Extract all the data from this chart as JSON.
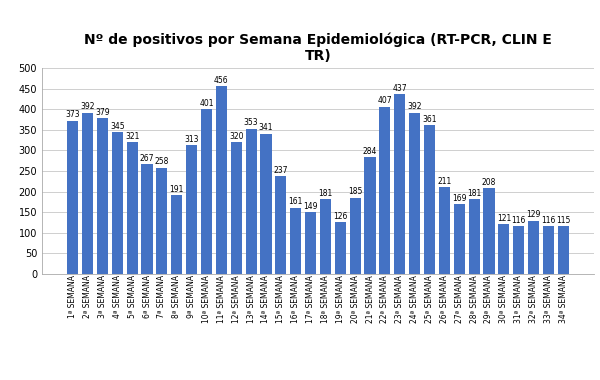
{
  "title": "Nº de positivos por Semana Epidemiológica (RT-PCR, CLIN E\nTR)",
  "categories": [
    "1ª SEMANA",
    "2ª SEMANA",
    "3ª SEMANA",
    "4ª SEMANA",
    "5ª SEMANA",
    "6ª SEMANA",
    "7ª SEMANA",
    "8ª SEMANA",
    "9ª SEMANA",
    "10ª SEMANA",
    "11ª SEMANA",
    "12ª SEMANA",
    "13ª SEMANA",
    "14ª SEMANA",
    "15ª SEMANA",
    "16ª SEMANA",
    "17ª SEMANA",
    "18ª SEMANA",
    "19ª SEMANA",
    "20ª SEMANA",
    "21ª SEMANA",
    "22ª SEMANA",
    "23ª SEMANA",
    "24ª SEMANA",
    "25ª SEMANA",
    "26ª SEMANA",
    "27ª SEMANA",
    "28ª SEMANA",
    "29ª SEMANA",
    "30ª SEMANA",
    "31ª SEMANA",
    "32ª SEMANA",
    "33ª SEMANA",
    "34ª SEMANA"
  ],
  "values": [
    373,
    392,
    379,
    345,
    321,
    267,
    258,
    191,
    313,
    401,
    456,
    320,
    353,
    341,
    237,
    161,
    149,
    181,
    126,
    185,
    284,
    407,
    437,
    392,
    361,
    211,
    169,
    181,
    208,
    121,
    116,
    129,
    116,
    115
  ],
  "bar_color": "#4472C4",
  "ylim": [
    0,
    500
  ],
  "yticks": [
    0,
    50,
    100,
    150,
    200,
    250,
    300,
    350,
    400,
    450,
    500
  ],
  "label_fontsize": 5.5,
  "title_fontsize": 10,
  "tick_fontsize": 5.5,
  "ytick_fontsize": 7,
  "background_color": "#ffffff",
  "grid_color": "#c8c8c8"
}
